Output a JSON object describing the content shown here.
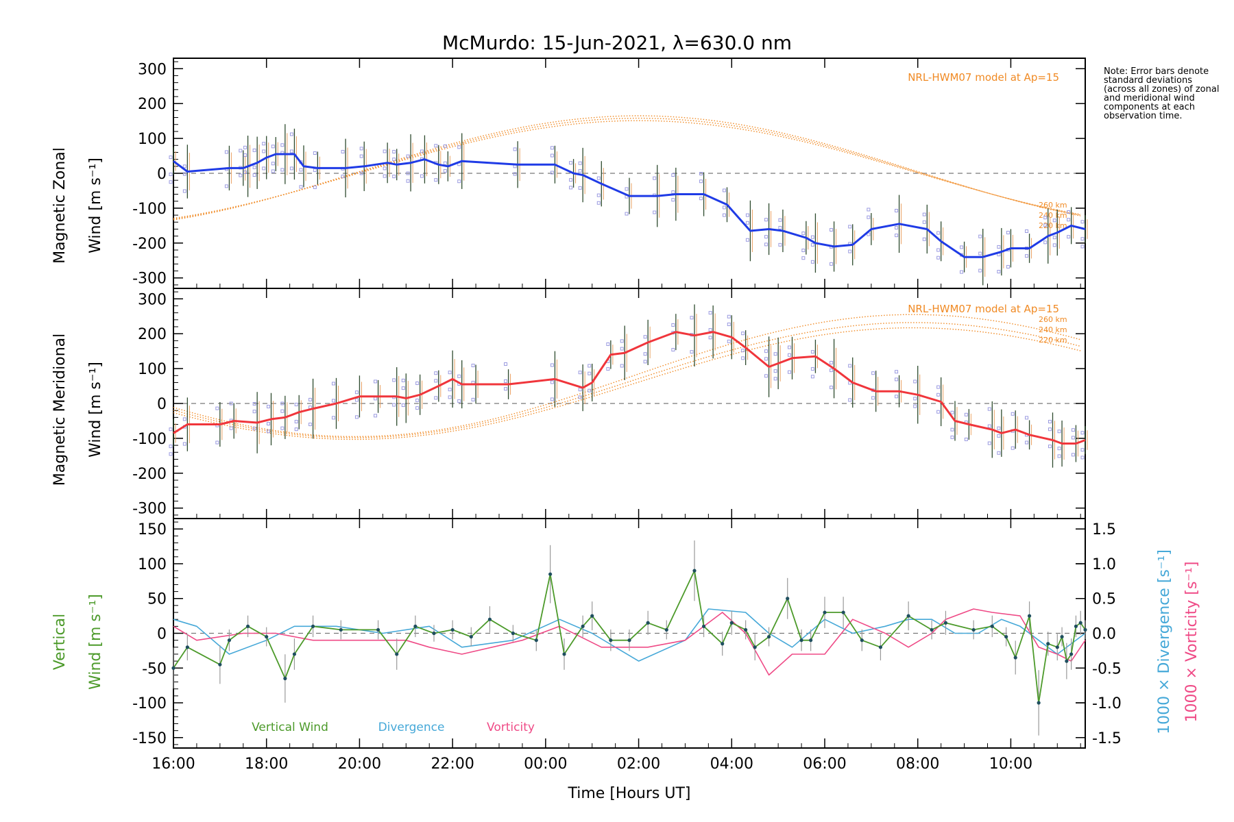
{
  "title": "McMurdo: 15-Jun-2021, λ=630.0 nm",
  "note": "Note: Error bars denote standard deviations (across all zones) of zonal and meridional wind components at each observation time.",
  "colors": {
    "zonal": "#1f3be6",
    "meridional": "#f0353b",
    "model": "#f08a24",
    "vertical": "#4c9a2a",
    "divergence": "#45a8d8",
    "vorticity": "#ef4a86",
    "samples": "#9a9ae0",
    "errorbar": "#555555"
  },
  "xaxis": {
    "label": "Time [Hours UT]",
    "ticks": [
      "16:00",
      "18:00",
      "20:00",
      "22:00",
      "00:00",
      "02:00",
      "04:00",
      "06:00",
      "08:00",
      "10:00"
    ],
    "tick_hours": [
      0,
      2,
      4,
      6,
      8,
      10,
      12,
      14,
      16,
      18
    ],
    "range_hours": [
      0,
      19.6
    ]
  },
  "chart_data": [
    {
      "id": "zonal",
      "type": "line",
      "ylabel_line1": "Magnetic Zonal",
      "ylabel_line2": "Wind [m s⁻¹]",
      "ylim": [
        -330,
        330
      ],
      "yticks": [
        300,
        200,
        100,
        0,
        -100,
        -200,
        -300
      ],
      "model_label": "NRL-HWM07 model at Ap=15",
      "model_alt_labels": [
        "260 km",
        "240 km",
        "220 km"
      ],
      "x": [
        0,
        0.3,
        1.2,
        1.5,
        1.6,
        1.8,
        2.0,
        2.2,
        2.4,
        2.6,
        2.8,
        3.1,
        3.7,
        4.1,
        4.6,
        4.8,
        5.1,
        5.4,
        5.7,
        5.9,
        6.2,
        7.4,
        8.2,
        8.6,
        8.8,
        9.2,
        9.8,
        10.4,
        10.8,
        11.4,
        11.9,
        12.4,
        12.8,
        13.1,
        13.6,
        13.8,
        14.2,
        14.6,
        15.0,
        15.6,
        16.2,
        16.5,
        17.0,
        17.4,
        17.8,
        18.0,
        18.4,
        18.8,
        19.0,
        19.3,
        19.6
      ],
      "values": [
        35,
        5,
        15,
        15,
        20,
        30,
        45,
        55,
        55,
        55,
        20,
        15,
        15,
        20,
        30,
        25,
        30,
        40,
        25,
        20,
        35,
        25,
        25,
        0,
        -5,
        -30,
        -65,
        -65,
        -60,
        -60,
        -90,
        -165,
        -160,
        -165,
        -185,
        -200,
        -210,
        -205,
        -160,
        -145,
        -160,
        -195,
        -240,
        -240,
        -225,
        -215,
        -215,
        -180,
        -170,
        -150,
        -160
      ],
      "model_curves": [
        {
          "label": "260 km",
          "mean": 5,
          "amp": 160,
          "peak_hour": 10.0
        },
        {
          "label": "240 km",
          "mean": 3,
          "amp": 155,
          "peak_hour": 10.0
        },
        {
          "label": "220 km",
          "mean": 1,
          "amp": 150,
          "peak_hour": 10.0
        }
      ]
    },
    {
      "id": "meridional",
      "type": "line",
      "ylabel_line1": "Magnetic Meridional",
      "ylabel_line2": "Wind [m s⁻¹]",
      "ylim": [
        -330,
        330
      ],
      "yticks": [
        300,
        200,
        100,
        0,
        -100,
        -200,
        -300
      ],
      "model_label": "NRL-HWM07 model at Ap=15",
      "model_alt_labels": [
        "260 km",
        "240 km",
        "220 km"
      ],
      "x": [
        0,
        0.3,
        1.0,
        1.3,
        1.8,
        2.1,
        2.4,
        2.7,
        3.0,
        3.5,
        4.0,
        4.4,
        4.8,
        5.0,
        5.3,
        5.7,
        6.0,
        6.2,
        6.5,
        7.2,
        8.2,
        8.8,
        9.0,
        9.4,
        9.7,
        10.2,
        10.8,
        11.2,
        11.6,
        12.0,
        12.3,
        12.8,
        13.0,
        13.3,
        13.8,
        14.2,
        14.6,
        15.1,
        15.6,
        16.0,
        16.5,
        16.8,
        17.1,
        17.6,
        17.8,
        18.1,
        18.4,
        18.9,
        19.1,
        19.4,
        19.6
      ],
      "values": [
        -85,
        -60,
        -60,
        -50,
        -55,
        -45,
        -40,
        -25,
        -15,
        0,
        20,
        20,
        20,
        15,
        25,
        50,
        70,
        55,
        55,
        55,
        70,
        45,
        60,
        140,
        145,
        175,
        205,
        195,
        205,
        190,
        160,
        105,
        115,
        130,
        135,
        100,
        60,
        35,
        35,
        25,
        5,
        -50,
        -60,
        -75,
        -85,
        -75,
        -90,
        -105,
        -115,
        -115,
        -105
      ],
      "model_curves": [
        {
          "label": "260 km",
          "mean": 80,
          "amp": 175,
          "peak_hour": 15.9
        },
        {
          "label": "240 km",
          "mean": 67,
          "amp": 165,
          "peak_hour": 15.9
        },
        {
          "label": "220 km",
          "mean": 57,
          "amp": 160,
          "peak_hour": 15.9
        }
      ]
    },
    {
      "id": "vertical",
      "type": "line",
      "ylabel_line1": "Vertical",
      "ylabel_line2": "Wind [m s⁻¹]",
      "ylim": [
        -165,
        165
      ],
      "yticks": [
        150,
        100,
        50,
        0,
        -50,
        -100,
        -150
      ],
      "y2_ticks": [
        "1.5",
        "1.0",
        "0.5",
        "0.0",
        "-0.5",
        "-1.0",
        "-1.5"
      ],
      "y2_values": [
        1.5,
        1.0,
        0.5,
        0.0,
        -0.5,
        -1.0,
        -1.5
      ],
      "y2lim": [
        -1.65,
        1.65
      ],
      "y2_label_divergence": "1000 × Divergence [s⁻¹]",
      "y2_label_vorticity": "1000 × Vorticity [s⁻¹]",
      "legend": [
        "Vertical Wind",
        "Divergence",
        "Vorticity"
      ],
      "x": [
        0,
        0.3,
        1.0,
        1.2,
        1.6,
        2.0,
        2.4,
        2.6,
        3.0,
        3.6,
        4.4,
        4.8,
        5.2,
        5.6,
        6.0,
        6.4,
        6.8,
        7.3,
        7.8,
        8.1,
        8.4,
        8.8,
        9.0,
        9.4,
        9.8,
        10.2,
        10.6,
        11.2,
        11.4,
        11.8,
        12.0,
        12.3,
        12.5,
        12.8,
        13.2,
        13.5,
        13.7,
        14.0,
        14.4,
        14.8,
        15.2,
        15.8,
        16.3,
        16.6,
        17.2,
        17.6,
        17.9,
        18.1,
        18.4,
        18.6,
        18.8,
        19.0,
        19.1,
        19.2,
        19.3,
        19.4,
        19.5,
        19.6
      ],
      "values": [
        -50,
        -20,
        -45,
        -10,
        10,
        -5,
        -65,
        -30,
        10,
        5,
        5,
        -30,
        10,
        0,
        5,
        -5,
        20,
        0,
        -10,
        85,
        -30,
        10,
        25,
        -10,
        -10,
        15,
        5,
        90,
        10,
        -15,
        15,
        5,
        -20,
        -5,
        50,
        -10,
        -10,
        30,
        30,
        -10,
        -20,
        25,
        5,
        15,
        5,
        10,
        -5,
        -35,
        25,
        -100,
        -15,
        -20,
        -5,
        -40,
        -30,
        10,
        15,
        5
      ],
      "divergence_x": [
        0,
        0.5,
        1.2,
        2.0,
        2.6,
        3.5,
        4.5,
        5.5,
        6.2,
        7.3,
        8.3,
        9.0,
        9.5,
        10.0,
        11.0,
        11.5,
        12.3,
        12.8,
        13.3,
        14.0,
        14.6,
        15.3,
        15.8,
        16.3,
        16.8,
        17.3,
        17.8,
        18.2,
        18.6,
        19.0,
        19.6
      ],
      "divergence_values": [
        0.2,
        0.1,
        -0.3,
        -0.1,
        0.1,
        0.1,
        0.0,
        0.1,
        -0.2,
        -0.1,
        0.2,
        0.0,
        -0.2,
        -0.4,
        -0.1,
        0.35,
        0.3,
        0.0,
        -0.2,
        0.2,
        0.0,
        0.1,
        0.2,
        0.2,
        0.0,
        0.0,
        0.2,
        0.1,
        -0.1,
        -0.3,
        0.0
      ],
      "vorticity_x": [
        0,
        0.5,
        1.5,
        2.2,
        3.0,
        4.0,
        5.0,
        5.5,
        6.2,
        7.5,
        8.3,
        9.2,
        10.2,
        11.0,
        11.8,
        12.3,
        12.8,
        13.3,
        14.0,
        14.6,
        15.3,
        15.8,
        16.3,
        16.6,
        17.2,
        17.6,
        18.2,
        18.6,
        19.0,
        19.3,
        19.6
      ],
      "vorticity_values": [
        0.1,
        -0.1,
        0.0,
        0.0,
        -0.1,
        -0.1,
        -0.1,
        -0.2,
        -0.3,
        -0.1,
        0.1,
        -0.2,
        -0.2,
        -0.1,
        0.3,
        0.0,
        -0.6,
        -0.3,
        -0.3,
        0.2,
        0.0,
        -0.2,
        0.0,
        0.2,
        0.35,
        0.3,
        0.25,
        -0.2,
        -0.3,
        -0.4,
        -0.1
      ]
    }
  ]
}
